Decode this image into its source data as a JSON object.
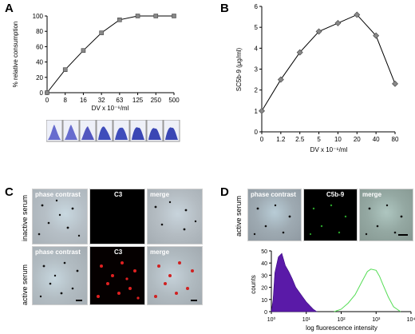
{
  "panels": {
    "A": {
      "letter": "A",
      "ylabel": "% relative consumption",
      "xlabel": "DV x 10⁻⁶/ml"
    },
    "B": {
      "letter": "B",
      "ylabel": "SC5b-9 (μg/ml)",
      "xlabel": "DV x 10⁻⁶/ml"
    },
    "C": {
      "letter": "C",
      "row_inactive": "inactive serum",
      "row_active": "active serum",
      "col_phase": "phase contrast",
      "col_c3": "C3",
      "col_merge": "merge"
    },
    "D": {
      "letter": "D",
      "row_active": "active serum",
      "col_phase": "phase contrast",
      "col_c5b9": "C5b-9",
      "col_merge": "merge",
      "hist_ylabel": "counts",
      "hist_xlabel": "log fluorescence intensity"
    }
  },
  "chart_data": [
    {
      "id": "A",
      "type": "line",
      "categories": [
        "0",
        "8",
        "16",
        "32",
        "63",
        "125",
        "250",
        "500"
      ],
      "values": [
        0,
        30,
        55,
        78,
        95,
        100,
        100,
        100
      ],
      "yticks": [
        "0",
        "20",
        "40",
        "60",
        "80",
        "100"
      ],
      "ylim": [
        0,
        100
      ],
      "color": "#888888"
    },
    {
      "id": "B",
      "type": "line",
      "categories": [
        "0",
        "1.2",
        "2.5",
        "5",
        "10",
        "20",
        "40",
        "80"
      ],
      "values": [
        1.0,
        2.5,
        3.8,
        4.8,
        5.2,
        5.6,
        4.6,
        2.3
      ],
      "yticks": [
        "0",
        "1",
        "2",
        "3",
        "4",
        "5",
        "6"
      ],
      "ylim": [
        0,
        6
      ],
      "color": "#888888"
    },
    {
      "id": "D-histogram",
      "type": "area",
      "yticks": [
        "0",
        "10",
        "20",
        "30",
        "40",
        "50"
      ],
      "ylim": [
        0,
        50
      ],
      "xticks": [
        "10⁰",
        "10¹",
        "10²",
        "10³",
        "10⁴"
      ],
      "xlim_log10": [
        0,
        4
      ],
      "series": [
        {
          "fill": "#5a1aa8",
          "x_log10": [
            0.0,
            0.05,
            0.1,
            0.2,
            0.3,
            0.4,
            0.5,
            0.6,
            0.7,
            0.8,
            0.9,
            1.0,
            1.1,
            1.2,
            1.3
          ],
          "y": [
            0,
            10,
            32,
            45,
            48,
            38,
            33,
            27,
            20,
            16,
            12,
            8,
            5,
            2,
            0
          ]
        },
        {
          "stroke": "#55dd55",
          "x_log10": [
            1.8,
            2.0,
            2.2,
            2.4,
            2.6,
            2.75,
            2.85,
            3.0,
            3.1,
            3.2,
            3.35,
            3.5,
            3.7
          ],
          "y": [
            0,
            2,
            7,
            14,
            25,
            33,
            35,
            34,
            29,
            22,
            12,
            4,
            0
          ]
        }
      ]
    }
  ]
}
